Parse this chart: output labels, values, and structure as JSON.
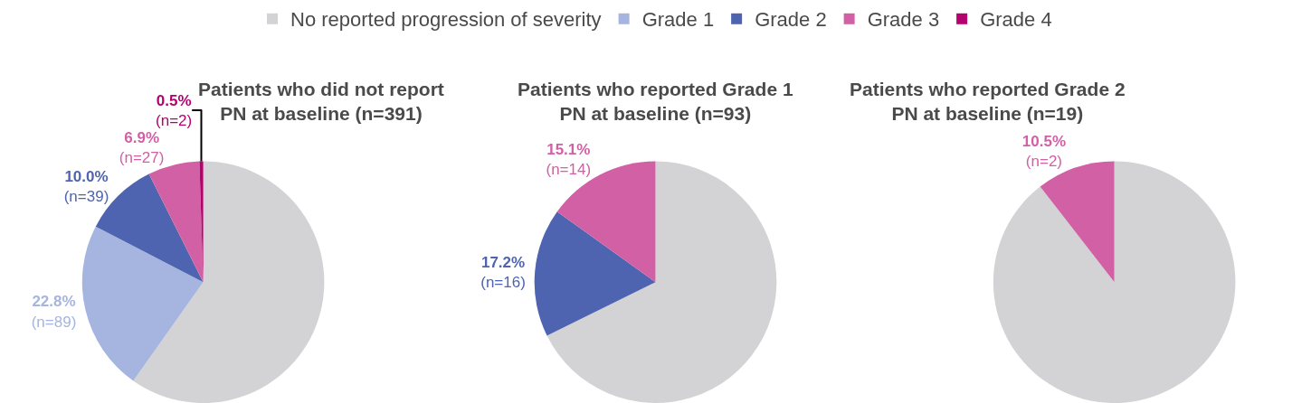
{
  "chart_data": [
    {
      "type": "pie",
      "title": "Patients who did not report\nPN at baseline (n=391)",
      "legend": "top",
      "categories": [
        "No reported progression of severity",
        "Grade 1",
        "Grade 2",
        "Grade 3",
        "Grade 4"
      ],
      "values": [
        59.8,
        22.8,
        10.0,
        6.9,
        0.5
      ],
      "colors": [
        "#d3d3d5",
        "#a5b5df",
        "#4e64b0",
        "#d160a5",
        "#b5006e"
      ],
      "value_labels": [
        null,
        "22.8%\n(n=89)",
        "10.0%\n(n=39)",
        "6.9%\n(n=27)",
        "0.5%\n(n=2)"
      ]
    },
    {
      "type": "pie",
      "title": "Patients who reported Grade 1\nPN at baseline (n=93)",
      "categories": [
        null,
        null,
        null
      ],
      "values": [
        67.7,
        17.2,
        15.1
      ],
      "colors": [
        "#d3d3d5",
        "#4e64b0",
        "#d160a5"
      ],
      "value_labels": [
        null,
        "17.2%\n(n=16)",
        "15.1%\n(n=14)"
      ]
    },
    {
      "type": "pie",
      "title": "Patients who reported Grade 2\nPN at baseline (n=19)",
      "categories": [
        null,
        null
      ],
      "values": [
        89.5,
        10.5
      ],
      "colors": [
        "#d3d3d5",
        "#d160a5"
      ],
      "value_labels": [
        null,
        "10.5%\n(n=2)"
      ]
    }
  ]
}
